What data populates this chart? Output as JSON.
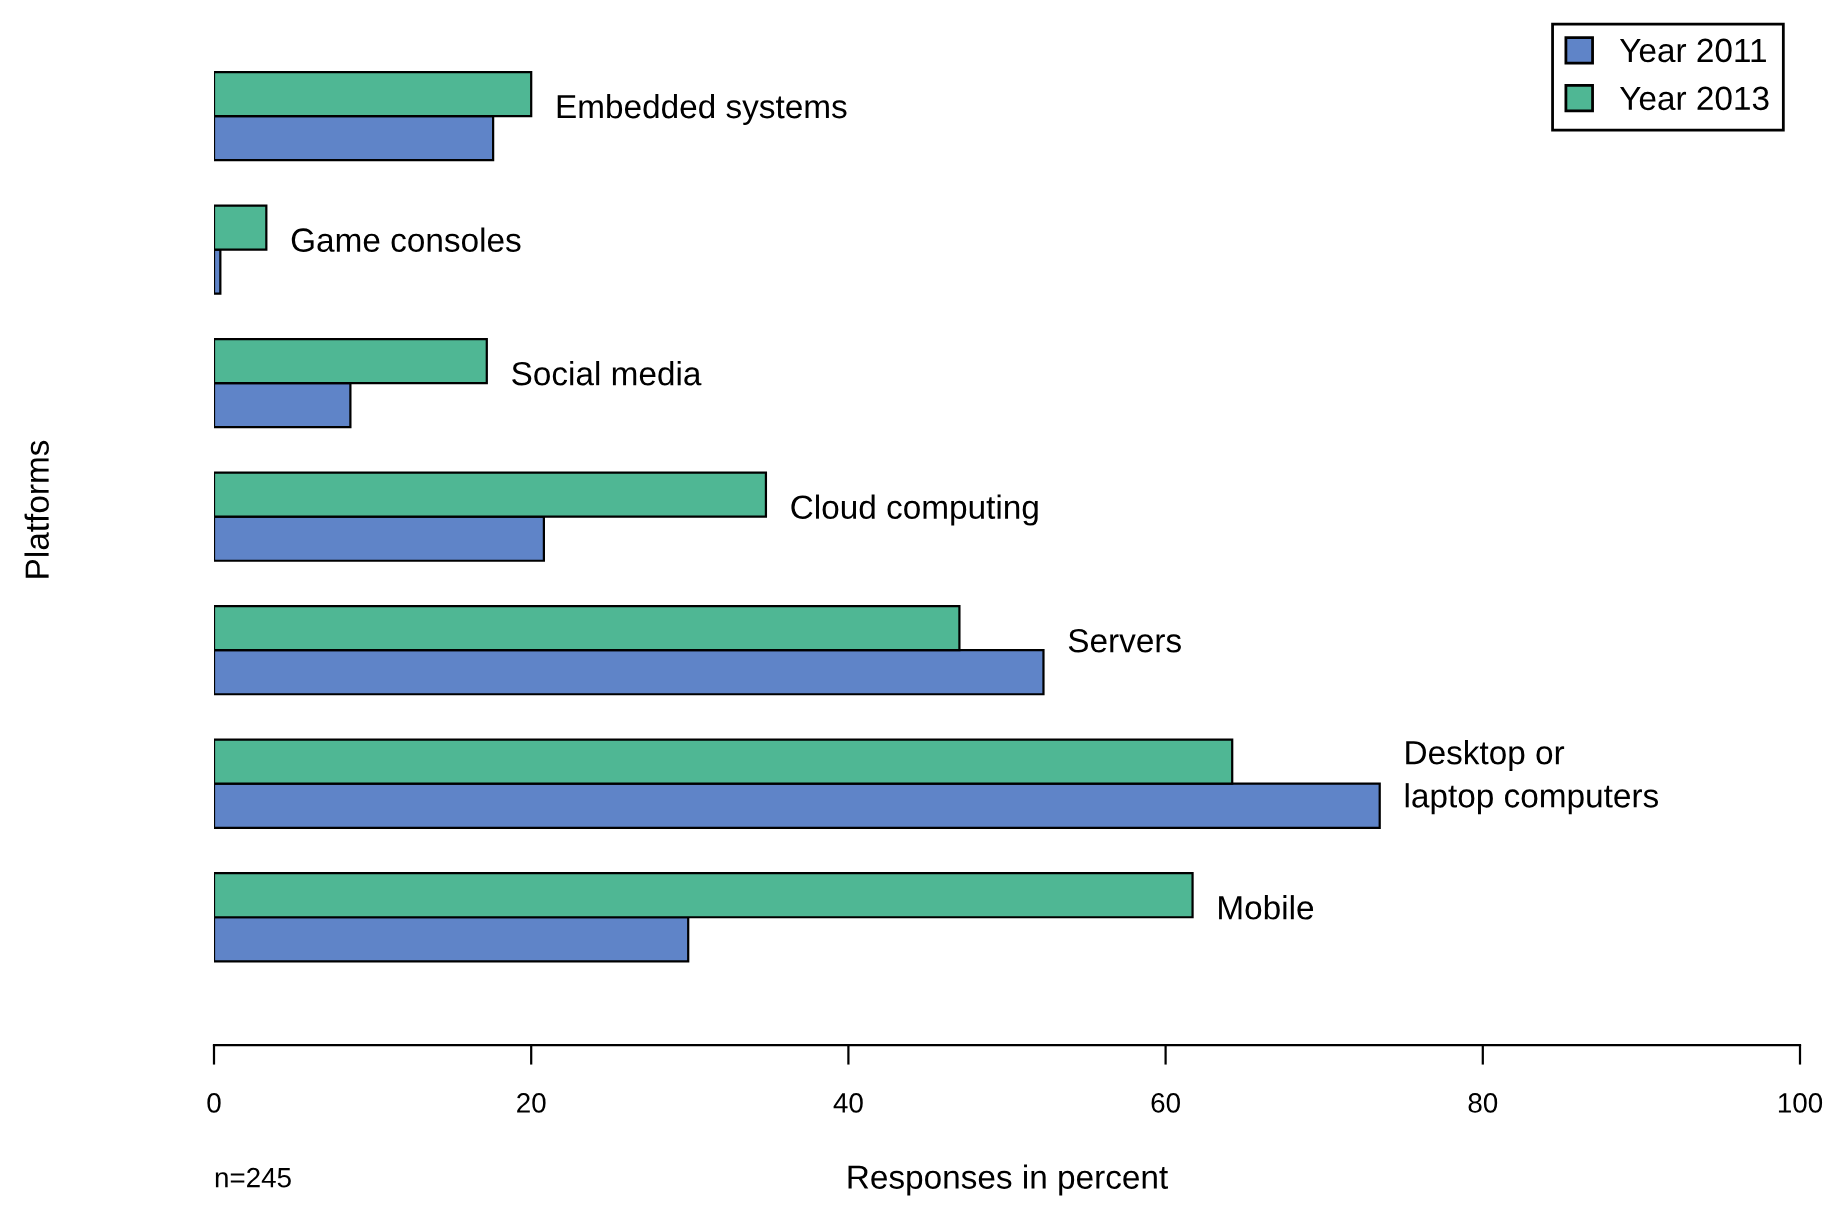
{
  "chart_data": {
    "type": "bar",
    "orientation": "horizontal",
    "xlabel": "Responses in percent",
    "ylabel": "Platforms",
    "categories": [
      "Embedded systems",
      "Game consoles",
      "Social media",
      "Cloud computing",
      "Servers",
      "Desktop or\nlaptop computers",
      "Mobile"
    ],
    "series": [
      {
        "name": "Year 2011",
        "color": "#5f84c8",
        "values": [
          17.6,
          0.4,
          8.6,
          20.8,
          52.3,
          73.5,
          29.9
        ]
      },
      {
        "name": "Year 2013",
        "color": "#4fb794",
        "values": [
          20.0,
          3.3,
          17.2,
          34.8,
          47.0,
          64.2,
          61.7
        ]
      }
    ],
    "xlim": [
      0,
      100
    ],
    "xticks": [
      0,
      20,
      40,
      60,
      80,
      100
    ],
    "tick_labels": "x",
    "grid": false,
    "legend": "top right",
    "annotations": [
      "n=245"
    ]
  }
}
